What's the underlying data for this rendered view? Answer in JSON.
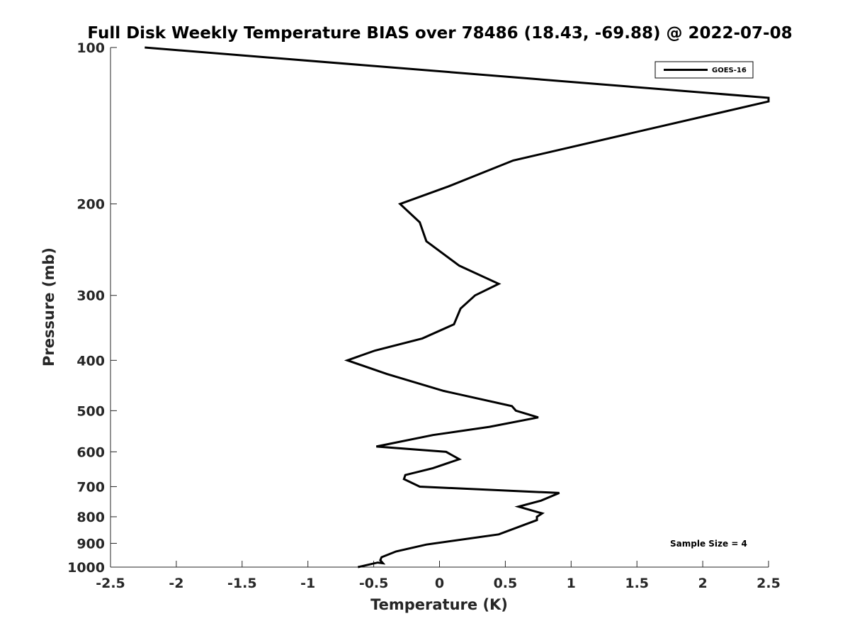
{
  "chart_data": {
    "type": "line",
    "title": "Full Disk Weekly Temperature BIAS over 78486 (18.43, -69.88) @ 2022-07-08",
    "xlabel": "Temperature (K)",
    "ylabel": "Pressure (mb)",
    "xlim": [
      -2.5,
      2.5
    ],
    "ylim": [
      100,
      1000
    ],
    "y_scale": "log",
    "y_reversed": true,
    "grid": false,
    "legend_position": "top-right",
    "x_ticks": [
      "-2.5",
      "-2",
      "-1.5",
      "-1",
      "-0.5",
      "0",
      "0.5",
      "1",
      "1.5",
      "2",
      "2.5"
    ],
    "y_ticks": [
      "100",
      "200",
      "300",
      "400",
      "500",
      "600",
      "700",
      "800",
      "900",
      "1000"
    ],
    "series": [
      {
        "name": "GOES-16",
        "color": "#000000",
        "points": [
          {
            "x": -2.24,
            "y": 100
          },
          {
            "x": 2.5,
            "y": 125
          },
          {
            "x": 2.5,
            "y": 127
          },
          {
            "x": 0.56,
            "y": 165
          },
          {
            "x": 0.07,
            "y": 185
          },
          {
            "x": -0.3,
            "y": 200
          },
          {
            "x": -0.15,
            "y": 217
          },
          {
            "x": -0.1,
            "y": 236
          },
          {
            "x": 0.15,
            "y": 263
          },
          {
            "x": 0.45,
            "y": 285
          },
          {
            "x": 0.27,
            "y": 300
          },
          {
            "x": 0.16,
            "y": 318
          },
          {
            "x": 0.11,
            "y": 341
          },
          {
            "x": -0.13,
            "y": 363
          },
          {
            "x": -0.49,
            "y": 383
          },
          {
            "x": -0.7,
            "y": 400
          },
          {
            "x": -0.4,
            "y": 425
          },
          {
            "x": 0.03,
            "y": 458
          },
          {
            "x": 0.55,
            "y": 490
          },
          {
            "x": 0.58,
            "y": 500
          },
          {
            "x": 0.75,
            "y": 515
          },
          {
            "x": 0.38,
            "y": 537
          },
          {
            "x": -0.05,
            "y": 557
          },
          {
            "x": -0.48,
            "y": 586
          },
          {
            "x": 0.05,
            "y": 600
          },
          {
            "x": 0.15,
            "y": 620
          },
          {
            "x": -0.05,
            "y": 645
          },
          {
            "x": -0.26,
            "y": 665
          },
          {
            "x": -0.27,
            "y": 677
          },
          {
            "x": -0.15,
            "y": 700
          },
          {
            "x": 0.91,
            "y": 720
          },
          {
            "x": 0.77,
            "y": 745
          },
          {
            "x": 0.6,
            "y": 765
          },
          {
            "x": 0.78,
            "y": 788
          },
          {
            "x": 0.74,
            "y": 800
          },
          {
            "x": 0.74,
            "y": 812
          },
          {
            "x": 0.45,
            "y": 865
          },
          {
            "x": -0.1,
            "y": 905
          },
          {
            "x": -0.33,
            "y": 933
          },
          {
            "x": -0.44,
            "y": 957
          },
          {
            "x": -0.45,
            "y": 970
          },
          {
            "x": -0.43,
            "y": 983
          },
          {
            "x": -0.47,
            "y": 980
          },
          {
            "x": -0.62,
            "y": 1000
          }
        ]
      }
    ],
    "annotation": "Sample Size = 4"
  }
}
